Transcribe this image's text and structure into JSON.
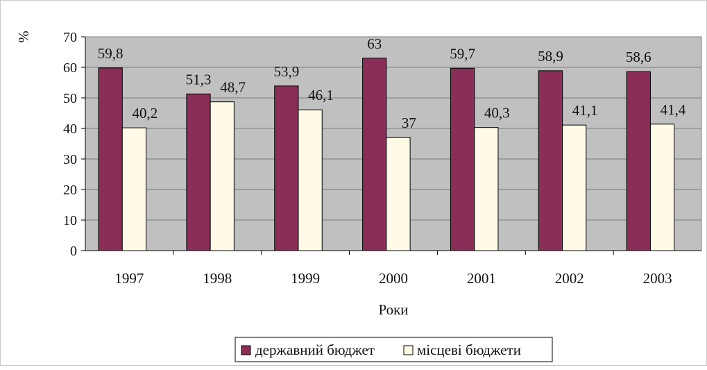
{
  "chart_data": {
    "type": "bar",
    "title": "",
    "xlabel": "Роки",
    "ylabel": "%",
    "ylim": [
      0,
      70
    ],
    "yticks": [
      0,
      10,
      20,
      30,
      40,
      50,
      60,
      70
    ],
    "grid": true,
    "legend_position": "bottom",
    "categories": [
      "1997",
      "1998",
      "1999",
      "2000",
      "2001",
      "2002",
      "2003"
    ],
    "series": [
      {
        "name": "державний бюджет",
        "color": "#8b2e57",
        "values": [
          59.8,
          51.3,
          53.9,
          63,
          59.7,
          58.9,
          58.6
        ],
        "labels": [
          "59,8",
          "51,3",
          "53,9",
          "63",
          "59,7",
          "58,9",
          "58,6"
        ]
      },
      {
        "name": "місцеві бюджети",
        "color": "#fffbe6",
        "values": [
          40.2,
          48.7,
          46.1,
          37,
          40.3,
          41.1,
          41.4
        ],
        "labels": [
          "40,2",
          "48,7",
          "46,1",
          "37",
          "40,3",
          "41,1",
          "41,4"
        ]
      }
    ]
  }
}
